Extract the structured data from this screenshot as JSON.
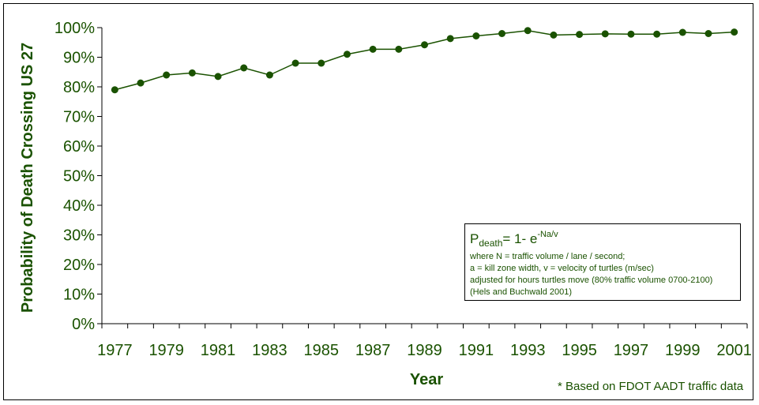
{
  "chart_data": {
    "type": "line",
    "xlabel": "Year",
    "ylabel": "Probability of Death Crossing US 27",
    "ylim": [
      0,
      100
    ],
    "y_ticks": [
      "0%",
      "10%",
      "20%",
      "30%",
      "40%",
      "50%",
      "60%",
      "70%",
      "80%",
      "90%",
      "100%"
    ],
    "x_ticks": [
      "1977",
      "1979",
      "1981",
      "1983",
      "1985",
      "1987",
      "1989",
      "1991",
      "1993",
      "1995",
      "1997",
      "1999",
      "2001"
    ],
    "grid": false,
    "x": [
      1977,
      1978,
      1979,
      1980,
      1981,
      1982,
      1983,
      1984,
      1985,
      1986,
      1987,
      1988,
      1989,
      1990,
      1991,
      1992,
      1993,
      1994,
      1995,
      1996,
      1997,
      1998,
      1999,
      2000,
      2001
    ],
    "series": [
      {
        "values": [
          79,
          81.3,
          84,
          84.7,
          83.5,
          86.4,
          84,
          88,
          88,
          91,
          92.7,
          92.7,
          94.2,
          96.3,
          97.2,
          98,
          99,
          97.5,
          97.7,
          97.9,
          97.8,
          97.8,
          98.4,
          98,
          98.5
        ]
      }
    ],
    "colors": {
      "line": "#1a5200",
      "text": "#1a5200",
      "axis": "#000000"
    }
  },
  "formula": {
    "p": "P",
    "sub": "death",
    "rest": "= 1- e",
    "sup": "-Na/v",
    "lines": [
      "where N = traffic volume / lane / second;",
      "a = kill zone width, v = velocity of turtles (m/sec)",
      "adjusted for hours turtles move (80% traffic volume 0700-2100)",
      "(Hels and Buchwald 2001)"
    ]
  },
  "source_note": "* Based on FDOT AADT traffic data"
}
